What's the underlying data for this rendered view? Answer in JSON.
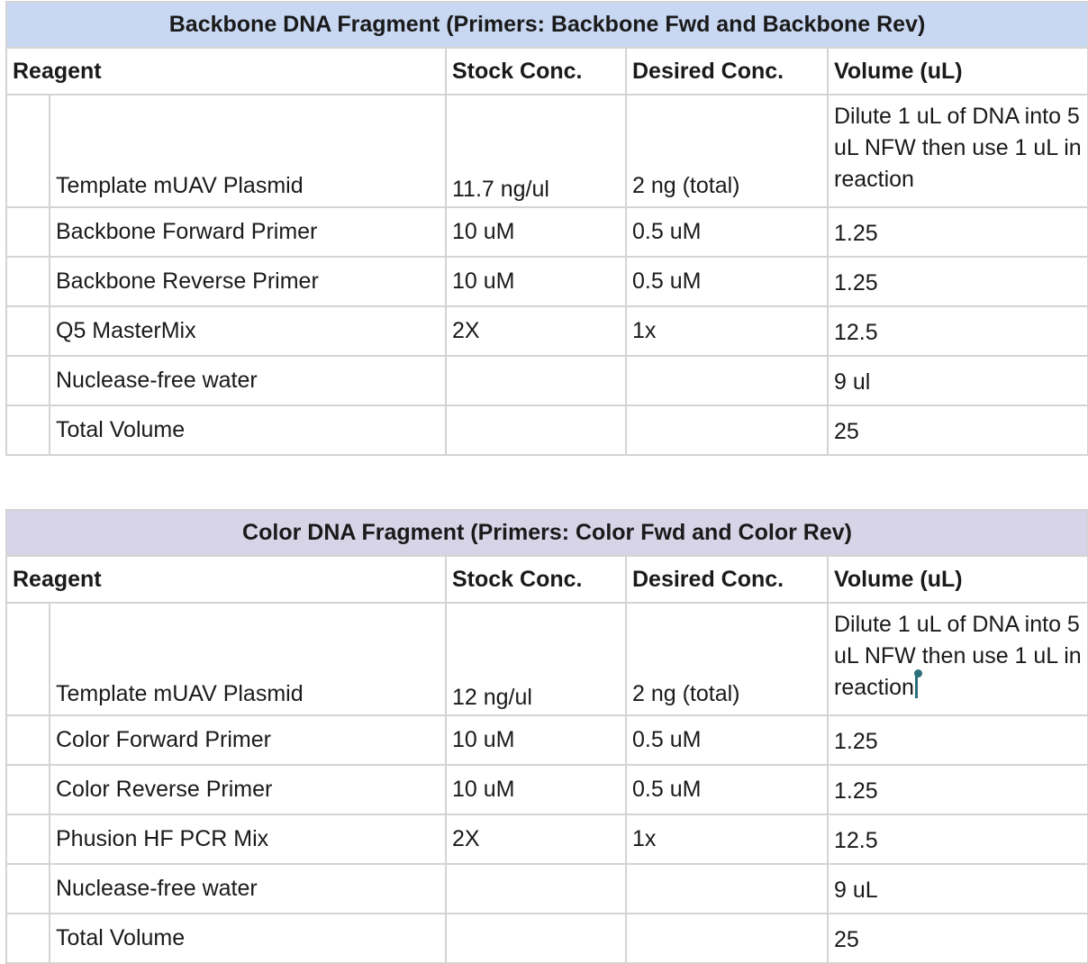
{
  "tables": [
    {
      "title": "Backbone DNA Fragment (Primers: Backbone Fwd and Backbone Rev)",
      "headers": [
        "Reagent",
        "Stock Conc.",
        "Desired Conc.",
        "Volume (uL)"
      ],
      "rows": [
        {
          "reagent": "Template mUAV Plasmid",
          "stock": "11.7 ng/ul",
          "desired": "2 ng (total)",
          "volume": "Dilute 1 uL of DNA into 5 uL NFW then use 1 uL in reaction"
        },
        {
          "reagent": "Backbone Forward Primer",
          "stock": "10 uM",
          "desired": "0.5 uM",
          "volume": "1.25"
        },
        {
          "reagent": "Backbone Reverse Primer",
          "stock": "10 uM",
          "desired": "0.5 uM",
          "volume": "1.25"
        },
        {
          "reagent": "Q5 MasterMix",
          "stock": "2X",
          "desired": "1x",
          "volume": "12.5"
        },
        {
          "reagent": "Nuclease-free water",
          "stock": "",
          "desired": "",
          "volume": "9 ul"
        },
        {
          "reagent": "Total Volume",
          "stock": "",
          "desired": "",
          "volume": "25"
        }
      ]
    },
    {
      "title": "Color DNA Fragment (Primers: Color Fwd and Color Rev)",
      "headers": [
        "Reagent",
        "Stock Conc.",
        "Desired Conc.",
        "Volume (uL)"
      ],
      "rows": [
        {
          "reagent": "Template mUAV Plasmid",
          "stock": "12 ng/ul",
          "desired": "2 ng (total)",
          "volume": "Dilute 1 uL of DNA into 5 uL NFW then use 1 uL in reaction"
        },
        {
          "reagent": "Color Forward Primer",
          "stock": "10 uM",
          "desired": "0.5 uM",
          "volume": "1.25"
        },
        {
          "reagent": "Color Reverse Primer",
          "stock": "10 uM",
          "desired": "0.5 uM",
          "volume": "1.25"
        },
        {
          "reagent": "Phusion HF PCR Mix",
          "stock": "2X",
          "desired": "1x",
          "volume": "12.5"
        },
        {
          "reagent": "Nuclease-free water",
          "stock": "",
          "desired": "",
          "volume": "9 uL"
        },
        {
          "reagent": "Total Volume",
          "stock": "",
          "desired": "",
          "volume": "25"
        }
      ]
    }
  ],
  "colors": {
    "backbone_title_bg": "#c9d8f2",
    "color_title_bg": "#d7d4e8",
    "grid_line": "#d4d4d4",
    "cursor": "#2a6f7a"
  }
}
